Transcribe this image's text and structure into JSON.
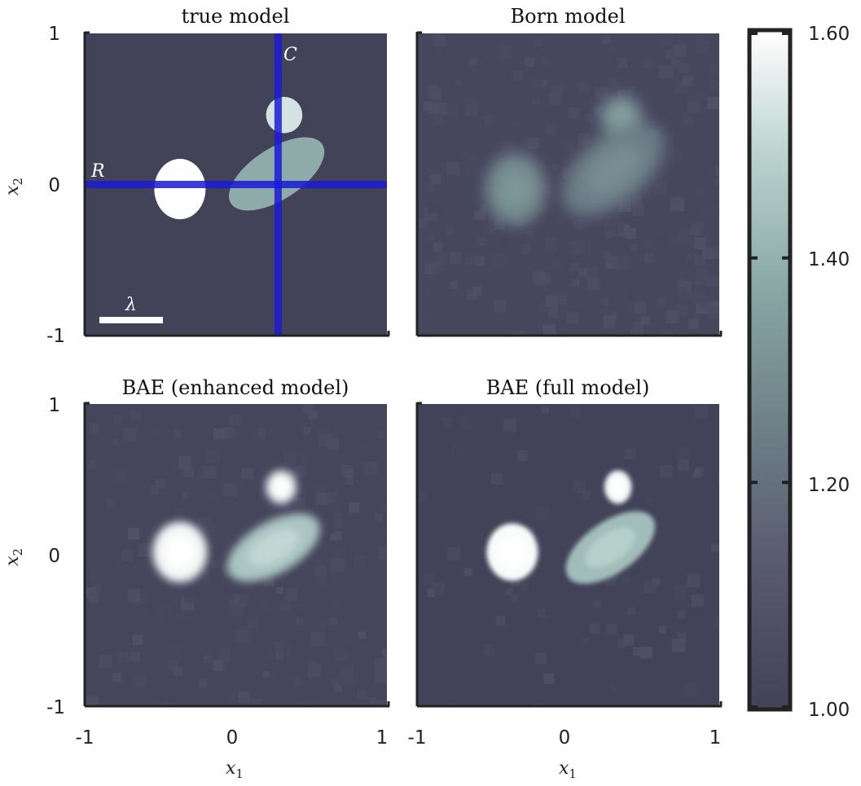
{
  "chart_data": {
    "type": "heatmap",
    "panels": [
      {
        "id": "true",
        "title": "true model",
        "xlim": [
          -1,
          1
        ],
        "ylim": [
          -1,
          1
        ],
        "annotations": {
          "row_line_label": "R",
          "col_line_label": "C",
          "scale_bar_label": "λ",
          "row_line_x2": 0.0,
          "col_line_x1": 0.28
        },
        "inclusions": [
          {
            "shape": "ellipse",
            "center": [
              -0.37,
              -0.03
            ],
            "radii": [
              0.17,
              0.2
            ],
            "value": 1.6
          },
          {
            "shape": "ellipse",
            "center": [
              0.32,
              0.46
            ],
            "radii": [
              0.12,
              0.12
            ],
            "value": 1.53
          },
          {
            "shape": "ellipse",
            "center": [
              0.27,
              0.07
            ],
            "radii": [
              0.36,
              0.17
            ],
            "rotation_deg": -33,
            "value": 1.38
          }
        ]
      },
      {
        "id": "born",
        "title": "Born model",
        "xlim": [
          -1,
          1
        ],
        "ylim": [
          -1,
          1
        ],
        "inclusions": [
          {
            "shape": "blob",
            "center": [
              -0.35,
              -0.03
            ],
            "radii": [
              0.2,
              0.24
            ],
            "value": 1.27
          },
          {
            "shape": "blob",
            "center": [
              0.35,
              0.45
            ],
            "radii": [
              0.14,
              0.14
            ],
            "value": 1.3
          },
          {
            "shape": "blob",
            "center": [
              0.3,
              0.1
            ],
            "radii": [
              0.4,
              0.22
            ],
            "rotation_deg": -40,
            "value": 1.24
          }
        ]
      },
      {
        "id": "bae_enhanced",
        "title": "BAE (enhanced model)",
        "xlim": [
          -1,
          1
        ],
        "ylim": [
          -1,
          1
        ],
        "inclusions": [
          {
            "shape": "blob",
            "center": [
              -0.37,
              0.02
            ],
            "radii": [
              0.18,
              0.2
            ],
            "value": 1.58
          },
          {
            "shape": "blob",
            "center": [
              0.3,
              0.45
            ],
            "radii": [
              0.1,
              0.11
            ],
            "value": 1.57
          },
          {
            "shape": "blob",
            "center": [
              0.25,
              0.05
            ],
            "radii": [
              0.34,
              0.17
            ],
            "rotation_deg": -30,
            "value": 1.45
          }
        ]
      },
      {
        "id": "bae_full",
        "title": "BAE (full model)",
        "xlim": [
          -1,
          1
        ],
        "ylim": [
          -1,
          1
        ],
        "inclusions": [
          {
            "shape": "blob",
            "center": [
              -0.37,
              0.02
            ],
            "radii": [
              0.17,
              0.19
            ],
            "value": 1.59
          },
          {
            "shape": "blob",
            "center": [
              0.33,
              0.45
            ],
            "radii": [
              0.09,
              0.11
            ],
            "value": 1.58
          },
          {
            "shape": "blob",
            "center": [
              0.28,
              0.05
            ],
            "radii": [
              0.34,
              0.17
            ],
            "rotation_deg": -35,
            "value": 1.43
          }
        ]
      }
    ],
    "x_ticks": [
      "-1",
      "0",
      "1"
    ],
    "y_ticks": [
      "1",
      "0",
      "-1"
    ],
    "xlabel": "x",
    "xlabel_sub": "1",
    "ylabel": "x",
    "ylabel_sub": "2",
    "colorbar": {
      "range": [
        1.0,
        1.6
      ],
      "tick_labels": [
        "1.60",
        "1.40",
        "1.20",
        "1.00"
      ],
      "tick_values": [
        1.6,
        1.4,
        1.2,
        1.0
      ]
    },
    "colormap": {
      "low": "#424259",
      "high": "#ffffff",
      "stops": [
        "#424259",
        "#57586d",
        "#6c7d86",
        "#86a3a2",
        "#b5cfcb",
        "#ffffff"
      ]
    },
    "line_color": "#1a1ad6",
    "background_value": 1.0
  }
}
